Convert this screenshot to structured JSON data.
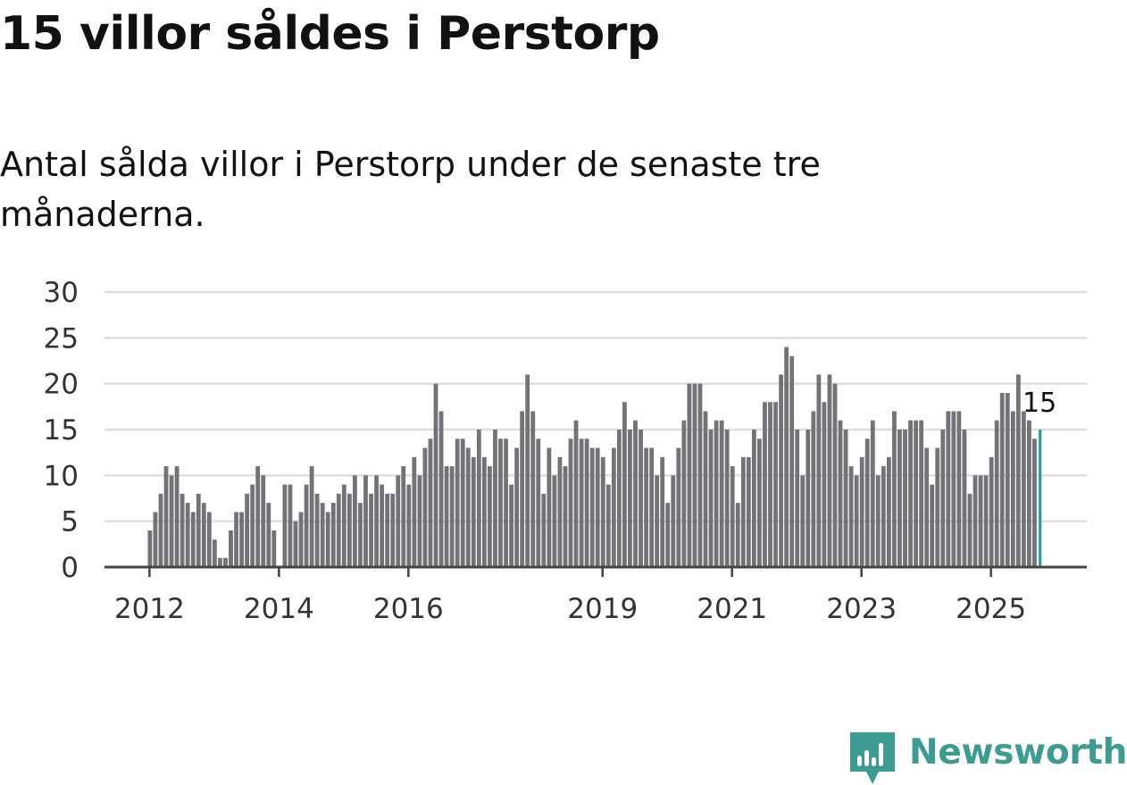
{
  "title": "15 villor såldes i Perstorp",
  "subtitle": "Antal sålda villor i Perstorp under de senaste tre månaderna.",
  "brand": {
    "name": "Newsworthy"
  },
  "colors": {
    "bar": "#737277",
    "highlight": "#26a096",
    "grid": "#dedede",
    "axis": "#444444",
    "brand": "#3d9b91"
  },
  "chart_data": {
    "type": "bar",
    "title": "15 villor såldes i Perstorp",
    "xlabel": "",
    "ylabel": "",
    "ylim": [
      0,
      30
    ],
    "yticks": [
      0,
      5,
      10,
      15,
      20,
      25,
      30
    ],
    "xticks": [
      {
        "label": "2012",
        "year": 2012
      },
      {
        "label": "2014",
        "year": 2014
      },
      {
        "label": "2016",
        "year": 2016
      },
      {
        "label": "2019",
        "year": 2019
      },
      {
        "label": "2021",
        "year": 2021
      },
      {
        "label": "2023",
        "year": 2023
      },
      {
        "label": "2025",
        "year": 2025
      }
    ],
    "start": "2012-01",
    "series": [
      {
        "name": "Antal sålda villor",
        "values": [
          4,
          6,
          8,
          11,
          10,
          11,
          8,
          7,
          6,
          8,
          7,
          6,
          3,
          1,
          1,
          4,
          6,
          6,
          8,
          9,
          11,
          10,
          7,
          4,
          0,
          9,
          9,
          5,
          6,
          9,
          11,
          8,
          7,
          6,
          7,
          8,
          9,
          8,
          10,
          7,
          10,
          8,
          10,
          9,
          8,
          8,
          10,
          11,
          9,
          12,
          10,
          13,
          14,
          20,
          17,
          11,
          11,
          14,
          14,
          13,
          12,
          15,
          12,
          11,
          15,
          14,
          14,
          9,
          13,
          17,
          21,
          17,
          14,
          8,
          13,
          10,
          12,
          11,
          14,
          16,
          14,
          14,
          13,
          13,
          12,
          9,
          13,
          15,
          18,
          15,
          16,
          15,
          13,
          13,
          10,
          12,
          7,
          10,
          13,
          16,
          20,
          20,
          20,
          17,
          15,
          16,
          16,
          15,
          11,
          7,
          12,
          12,
          15,
          14,
          18,
          18,
          18,
          21,
          24,
          23,
          15,
          10,
          15,
          17,
          21,
          18,
          21,
          20,
          16,
          15,
          11,
          10,
          12,
          14,
          16,
          10,
          11,
          12,
          17,
          15,
          15,
          16,
          16,
          16,
          13,
          9,
          13,
          15,
          17,
          17,
          17,
          15,
          8,
          10,
          10,
          10,
          12,
          16,
          19,
          19,
          17,
          21,
          17,
          16,
          14,
          15
        ]
      }
    ],
    "highlight": {
      "label": "15",
      "value": 15,
      "index": 165
    }
  }
}
